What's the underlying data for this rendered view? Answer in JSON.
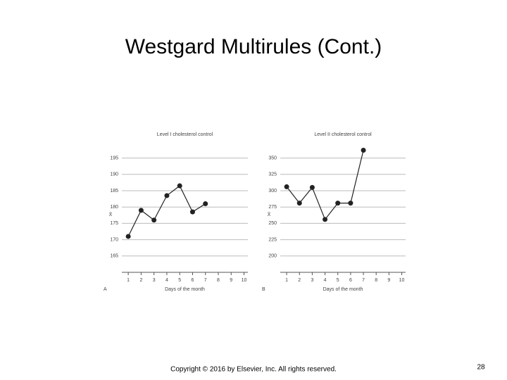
{
  "slide": {
    "title": "Westgard Multirules (Cont.)",
    "footer": "Copyright © 2016 by Elsevier, Inc. All rights reserved.",
    "page_number": "28"
  },
  "chart_data": [
    {
      "type": "line",
      "panel_label": "A",
      "title": "Level I cholesterol control",
      "x_label": "Days of the month",
      "y_label": "X̄",
      "x": [
        1,
        2,
        3,
        4,
        5,
        6,
        7,
        8,
        9,
        10
      ],
      "values": [
        171,
        179,
        176,
        183.5,
        186.5,
        178.5,
        181,
        null,
        null,
        null
      ],
      "color": "#222222",
      "xlim": [
        0.5,
        10.3
      ],
      "xticks": [
        1,
        2,
        3,
        4,
        5,
        6,
        7,
        8,
        9,
        10
      ],
      "ylim": [
        160,
        197.5
      ],
      "yticks": [
        165,
        170,
        175,
        180,
        185,
        190,
        195
      ],
      "grid": true
    },
    {
      "type": "line",
      "panel_label": "B",
      "title": "Level II cholesterol control",
      "x_label": "Days of the month",
      "y_label": "X̄",
      "x": [
        1,
        2,
        3,
        4,
        5,
        6,
        7,
        8,
        9,
        10
      ],
      "values": [
        306,
        281,
        305,
        256,
        281,
        281,
        362,
        null,
        null,
        null
      ],
      "color": "#222222",
      "xlim": [
        0.5,
        10.3
      ],
      "xticks": [
        1,
        2,
        3,
        4,
        5,
        6,
        7,
        8,
        9,
        10
      ],
      "ylim": [
        175,
        362.5
      ],
      "yticks": [
        200,
        225,
        250,
        275,
        300,
        325,
        350
      ],
      "grid": true
    }
  ]
}
